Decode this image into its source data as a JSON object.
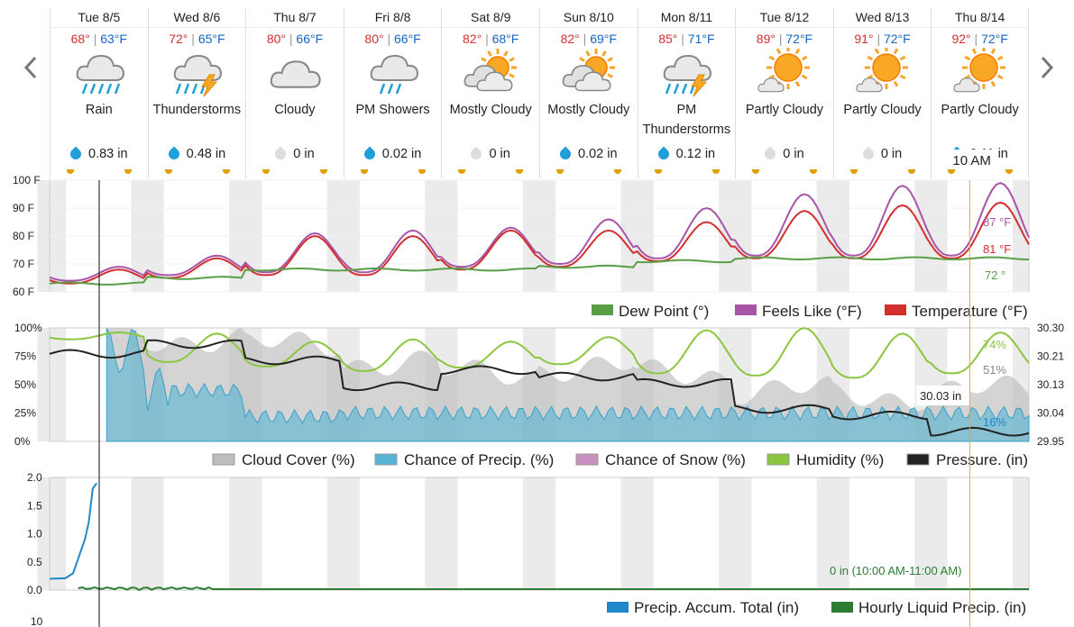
{
  "nav": {
    "prev_icon": "chevron-left-icon",
    "next_icon": "chevron-right-icon"
  },
  "days": [
    {
      "date": "Tue 8/5",
      "hi": "68°",
      "lo": "63°F",
      "icon": "rain",
      "condition": "Rain",
      "precip": "0.83 in",
      "wet": true
    },
    {
      "date": "Wed 8/6",
      "hi": "72°",
      "lo": "65°F",
      "icon": "thunderstorm",
      "condition": "Thunderstorms",
      "precip": "0.48 in",
      "wet": true
    },
    {
      "date": "Thu 8/7",
      "hi": "80°",
      "lo": "66°F",
      "icon": "cloudy",
      "condition": "Cloudy",
      "precip": "0 in",
      "wet": false
    },
    {
      "date": "Fri 8/8",
      "hi": "80°",
      "lo": "66°F",
      "icon": "showers",
      "condition": "PM Showers",
      "precip": "0.02 in",
      "wet": true
    },
    {
      "date": "Sat 8/9",
      "hi": "82°",
      "lo": "68°F",
      "icon": "mostly-cloudy",
      "condition": "Mostly Cloudy",
      "precip": "0 in",
      "wet": false
    },
    {
      "date": "Sun 8/10",
      "hi": "82°",
      "lo": "69°F",
      "icon": "mostly-cloudy",
      "condition": "Mostly Cloudy",
      "precip": "0.02 in",
      "wet": true
    },
    {
      "date": "Mon 8/11",
      "hi": "85°",
      "lo": "71°F",
      "icon": "thunderstorm",
      "condition": "PM Thunderstorms",
      "precip": "0.12 in",
      "wet": true
    },
    {
      "date": "Tue 8/12",
      "hi": "89°",
      "lo": "72°F",
      "icon": "partly-cloudy",
      "condition": "Partly Cloudy",
      "precip": "0 in",
      "wet": false
    },
    {
      "date": "Wed 8/13",
      "hi": "91°",
      "lo": "72°F",
      "icon": "partly-cloudy",
      "condition": "Partly Cloudy",
      "precip": "0 in",
      "wet": false
    },
    {
      "date": "Thu 8/14",
      "hi": "92°",
      "lo": "72°F",
      "icon": "partly-cloudy",
      "condition": "Partly Cloudy",
      "precip": "0.11 in",
      "wet": true
    }
  ],
  "cursor": {
    "time_label": "10 AM"
  },
  "colors": {
    "temperature": "#d32f2f",
    "feels_like": "#a855a8",
    "dew_point": "#5a9e46",
    "cloud": "#bdbdbd",
    "precip_chance": "#55b4d4",
    "snow": "#c990c0",
    "humidity": "#8cc63f",
    "pressure": "#222222",
    "accum": "#1e88c8",
    "hourly": "#2e7d32",
    "cursor": "#f0a040",
    "rain_drop": "#1e9fd8",
    "dry_drop": "#dddddd"
  },
  "chart_data": [
    {
      "type": "line",
      "ylim": [
        60,
        100
      ],
      "yticks": [
        "100 F",
        "90 F",
        "80 F",
        "70 F",
        "60 F"
      ],
      "legend": [
        "Dew Point (°)",
        "Feels Like (°F)",
        "Temperature (°F)"
      ],
      "day_min": [
        63,
        65,
        66,
        66,
        68,
        69,
        71,
        72,
        72,
        72
      ],
      "day_max": [
        68,
        72,
        80,
        80,
        82,
        82,
        85,
        89,
        91,
        92
      ],
      "feels_max": [
        69,
        73,
        81,
        82,
        83,
        86,
        90,
        95,
        98,
        99
      ],
      "dew_levels": [
        63,
        65,
        68,
        68,
        68,
        69,
        71,
        72,
        72,
        72
      ],
      "current": {
        "feels_like": "87 °F",
        "temperature": "81 °F",
        "dew_point": "72 °"
      }
    },
    {
      "type": "area",
      "ylim_left": [
        0,
        100
      ],
      "ylim_right": [
        29.95,
        30.3
      ],
      "yticks_left": [
        "100%",
        "75%",
        "50%",
        "25%",
        "0%"
      ],
      "yticks_right": [
        "30.30",
        "30.21",
        "30.13",
        "30.04",
        "29.95"
      ],
      "legend": [
        "Cloud Cover (%)",
        "Chance of Precip. (%)",
        "Chance of Snow (%)",
        "Humidity (%)",
        "Pressure. (in)"
      ],
      "humidity_min": [
        90,
        70,
        66,
        62,
        65,
        68,
        60,
        58,
        56,
        60
      ],
      "humidity_max": [
        96,
        95,
        88,
        90,
        88,
        92,
        98,
        100,
        95,
        96
      ],
      "pressure_daily": [
        30.22,
        30.25,
        30.2,
        30.12,
        30.17,
        30.15,
        30.13,
        30.05,
        30.03,
        29.98
      ],
      "cloud_daily": [
        95,
        90,
        85,
        70,
        60,
        65,
        60,
        45,
        40,
        45
      ],
      "precip_daily": [
        80,
        45,
        22,
        25,
        25,
        25,
        25,
        25,
        25,
        25
      ],
      "current": {
        "pressure": "30.03 in",
        "humidity": "74%",
        "cloud": "51%",
        "precip": "16%"
      }
    },
    {
      "type": "line",
      "ylim": [
        0,
        2
      ],
      "yticks": [
        "2.0",
        "1.5",
        "1.0",
        "0.5",
        "0.0"
      ],
      "legend": [
        "Precip. Accum. Total (in)",
        "Hourly Liquid Precip. (in)"
      ],
      "accum_points": [
        [
          0,
          0.2
        ],
        [
          0.2,
          0.21
        ],
        [
          0.3,
          0.3
        ],
        [
          0.45,
          0.9
        ],
        [
          0.5,
          1.2
        ],
        [
          0.55,
          1.8
        ],
        [
          0.6,
          1.9
        ]
      ],
      "current": {
        "hourly": "0 in (10:00 AM-11:00 AM)"
      }
    }
  ],
  "next_axis_label": "10"
}
